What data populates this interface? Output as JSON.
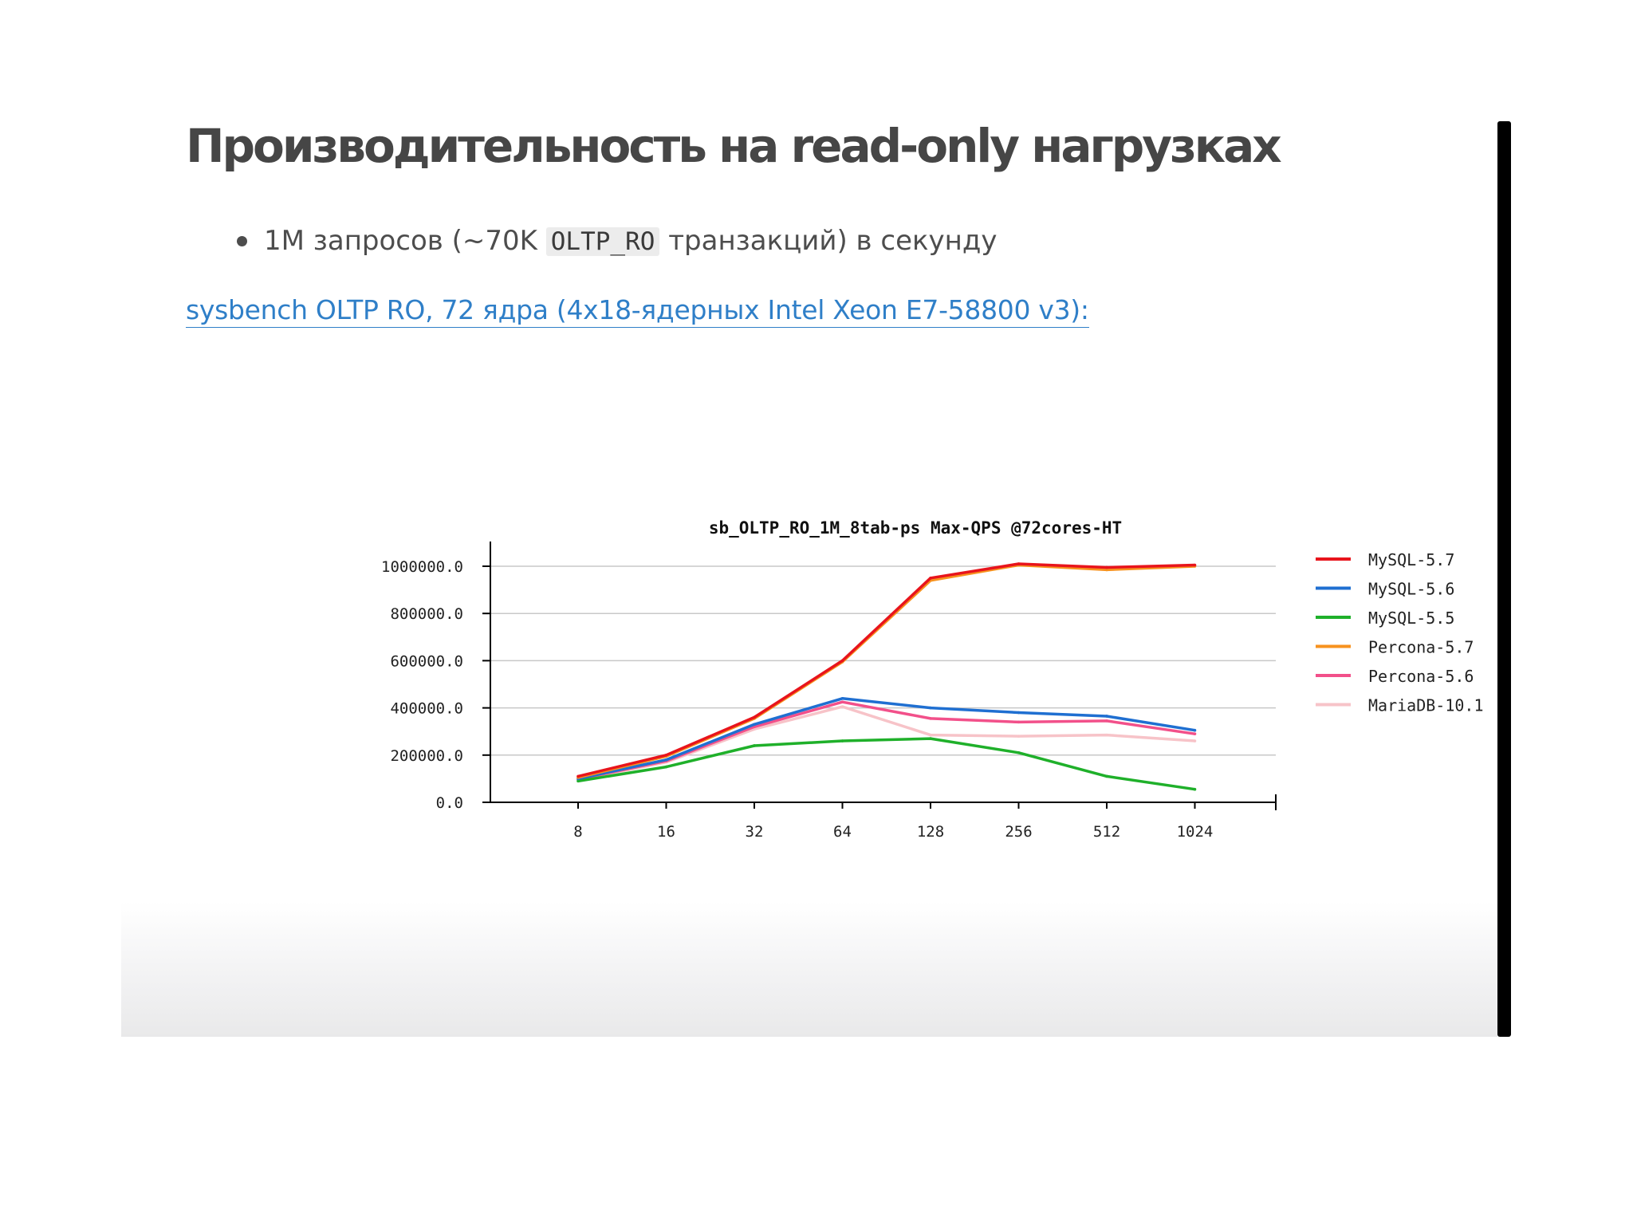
{
  "slide": {
    "title": "Производительность на read-only нагрузках",
    "bullet": {
      "before": "1M запросов (~70K ",
      "code": "OLTP_RO",
      "after": " транзакций) в секунду"
    },
    "link_text": "sysbench OLTP RO, 72 ядра (4x18-ядерных Intel Xeon E7-58800 v3):"
  },
  "chart_data": {
    "type": "line",
    "title": "sb_OLTP_RO_1M_8tab-ps Max-QPS @72cores-HT",
    "xlabel": "",
    "ylabel": "",
    "categories": [
      "8",
      "16",
      "32",
      "64",
      "128",
      "256",
      "512",
      "1024"
    ],
    "ylim": [
      0,
      1000000
    ],
    "yticks": [
      "0.0",
      "200000.0",
      "400000.0",
      "600000.0",
      "800000.0",
      "1000000.0"
    ],
    "grid": true,
    "legend": "right",
    "series": [
      {
        "name": "MySQL-5.7",
        "color": "#e8141c",
        "values": [
          110000,
          200000,
          360000,
          600000,
          950000,
          1010000,
          995000,
          1005000
        ]
      },
      {
        "name": "MySQL-5.6",
        "color": "#1f6fd1",
        "values": [
          100000,
          180000,
          330000,
          440000,
          400000,
          380000,
          365000,
          305000
        ]
      },
      {
        "name": "MySQL-5.5",
        "color": "#1fb02a",
        "values": [
          90000,
          150000,
          240000,
          260000,
          270000,
          210000,
          110000,
          55000
        ]
      },
      {
        "name": "Percona-5.7",
        "color": "#f7921e",
        "values": [
          105000,
          195000,
          355000,
          595000,
          940000,
          1005000,
          985000,
          1000000
        ]
      },
      {
        "name": "Percona-5.6",
        "color": "#f2508a",
        "values": [
          98000,
          175000,
          320000,
          425000,
          355000,
          340000,
          345000,
          290000
        ]
      },
      {
        "name": "MariaDB-10.1",
        "color": "#f7c3c8",
        "values": [
          95000,
          170000,
          310000,
          405000,
          285000,
          280000,
          285000,
          260000
        ]
      }
    ]
  }
}
